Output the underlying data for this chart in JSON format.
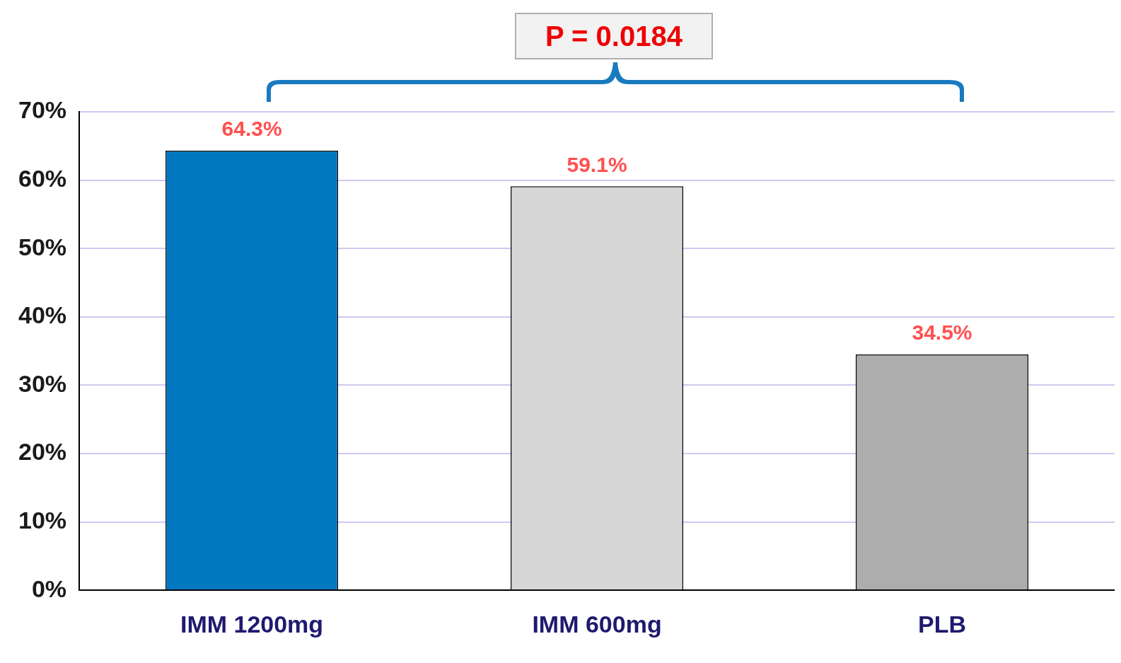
{
  "chart_data": {
    "type": "bar",
    "categories": [
      "IMM 1200mg",
      "IMM 600mg",
      "PLB"
    ],
    "values": [
      64.3,
      59.1,
      34.5
    ],
    "colors": [
      "#0078c0",
      "#d6d6d6",
      "#adadad"
    ],
    "value_labels": [
      "64.3%",
      "59.1%",
      "34.5%"
    ],
    "ylim": [
      0,
      70
    ],
    "yticks": [
      {
        "value": 0,
        "label": "0%"
      },
      {
        "value": 10,
        "label": "10%"
      },
      {
        "value": 20,
        "label": "20%"
      },
      {
        "value": 30,
        "label": "30%"
      },
      {
        "value": 40,
        "label": "40%"
      },
      {
        "value": 50,
        "label": "50%"
      },
      {
        "value": 60,
        "label": "60%"
      },
      {
        "value": 70,
        "label": "70%"
      }
    ],
    "grid": "y",
    "legend": false,
    "annotations": [
      "P = 0.0184"
    ]
  }
}
